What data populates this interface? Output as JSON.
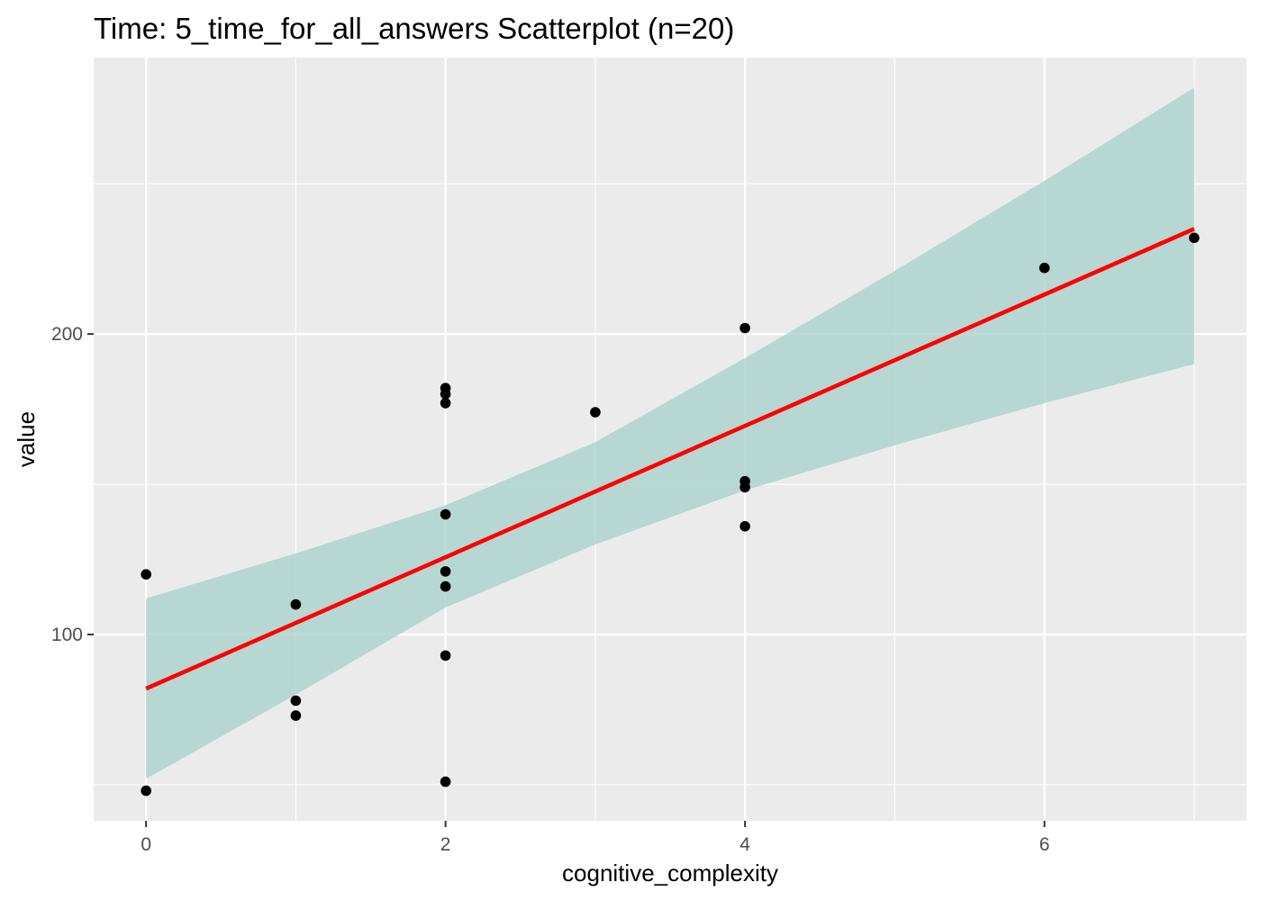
{
  "chart_data": {
    "type": "scatter",
    "title": "Time: 5_time_for_all_answers Scatterplot (n=20)",
    "xlabel": "cognitive_complexity",
    "ylabel": "value",
    "xlim": [
      -0.35,
      7.35
    ],
    "ylim": [
      38,
      292
    ],
    "x_ticks": [
      0,
      2,
      4,
      6
    ],
    "x_tick_labels": [
      "0",
      "2",
      "4",
      "6"
    ],
    "x_minor_ticks": [
      1,
      3,
      5,
      7
    ],
    "y_ticks": [
      100,
      200
    ],
    "y_tick_labels": [
      "100",
      "200"
    ],
    "y_minor_ticks": [
      50,
      150,
      250
    ],
    "grid": true,
    "points": [
      {
        "x": 0,
        "y": 120
      },
      {
        "x": 0,
        "y": 48
      },
      {
        "x": 1,
        "y": 110
      },
      {
        "x": 1,
        "y": 78
      },
      {
        "x": 1,
        "y": 73
      },
      {
        "x": 2,
        "y": 182
      },
      {
        "x": 2,
        "y": 180
      },
      {
        "x": 2,
        "y": 177
      },
      {
        "x": 2,
        "y": 140
      },
      {
        "x": 2,
        "y": 121
      },
      {
        "x": 2,
        "y": 116
      },
      {
        "x": 2,
        "y": 93
      },
      {
        "x": 2,
        "y": 51
      },
      {
        "x": 3,
        "y": 174
      },
      {
        "x": 4,
        "y": 202
      },
      {
        "x": 4,
        "y": 151
      },
      {
        "x": 4,
        "y": 149
      },
      {
        "x": 4,
        "y": 136
      },
      {
        "x": 6,
        "y": 222
      },
      {
        "x": 7,
        "y": 232
      }
    ],
    "fit_line": {
      "x": [
        0,
        7
      ],
      "y": [
        82,
        235
      ],
      "color": "#ff0000"
    },
    "confidence_band": {
      "x": [
        0,
        1,
        2,
        3,
        4,
        5,
        6,
        7
      ],
      "upper": [
        112,
        127,
        143,
        164,
        192,
        221,
        251,
        282
      ],
      "lower": [
        52,
        80,
        109,
        130,
        148,
        163,
        177,
        190
      ],
      "color": "#a8d1ca"
    },
    "colors": {
      "panel_background": "#ebebeb",
      "grid": "#ffffff",
      "point": "#000000",
      "fit": "#ff0000",
      "band": "#a8d1ca"
    }
  }
}
